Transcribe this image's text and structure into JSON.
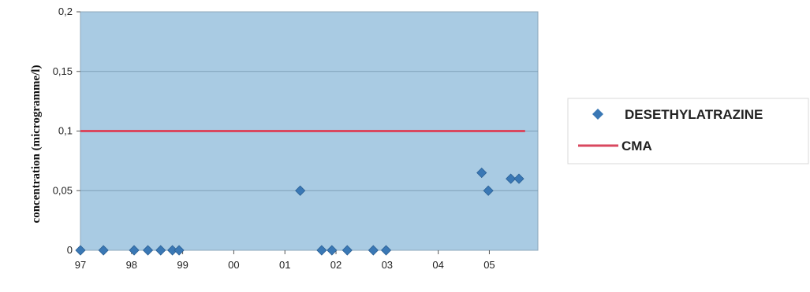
{
  "chart_data": {
    "type": "scatter",
    "title": "",
    "xlabel": "",
    "ylabel": "concentration (microgramme/l)",
    "x_ticks": [
      "97",
      "98",
      "99",
      "00",
      "01",
      "02",
      "03",
      "04",
      "05"
    ],
    "y_ticks": [
      "0",
      "0,05",
      "0,1",
      "0,15",
      "0,2"
    ],
    "ylim": [
      0,
      0.2
    ],
    "xlim": [
      1997.0,
      2005.95
    ],
    "grid": "horizontal",
    "legend_position": "right",
    "series": [
      {
        "name": "DESETHYLATRAZINE",
        "type": "scatter",
        "marker": "diamond",
        "color": "#3a78b5",
        "points": [
          {
            "x": 1997.0,
            "y": 0
          },
          {
            "x": 1997.45,
            "y": 0
          },
          {
            "x": 1998.05,
            "y": 0
          },
          {
            "x": 1998.32,
            "y": 0
          },
          {
            "x": 1998.57,
            "y": 0
          },
          {
            "x": 1998.8,
            "y": 0
          },
          {
            "x": 1998.93,
            "y": 0
          },
          {
            "x": 2001.3,
            "y": 0.05
          },
          {
            "x": 2001.72,
            "y": 0
          },
          {
            "x": 2001.92,
            "y": 0
          },
          {
            "x": 2002.22,
            "y": 0
          },
          {
            "x": 2002.73,
            "y": 0
          },
          {
            "x": 2002.98,
            "y": 0
          },
          {
            "x": 2004.85,
            "y": 0.065
          },
          {
            "x": 2004.98,
            "y": 0.05
          },
          {
            "x": 2005.42,
            "y": 0.06
          },
          {
            "x": 2005.58,
            "y": 0.06
          }
        ]
      },
      {
        "name": "CMA",
        "type": "line",
        "color": "#d9485f",
        "points": [
          {
            "x": 1997.0,
            "y": 0.1
          },
          {
            "x": 2005.7,
            "y": 0.1
          }
        ]
      }
    ]
  }
}
